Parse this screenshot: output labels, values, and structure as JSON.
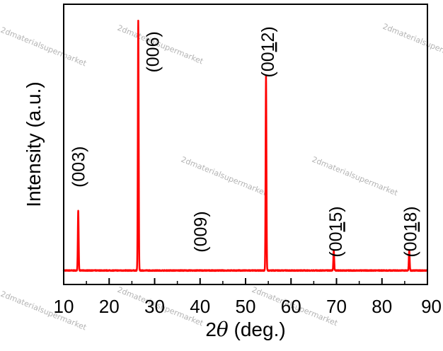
{
  "chart_data": {
    "type": "line",
    "xlabel_prefix": "2",
    "xlabel_symbol": "θ",
    "xlabel_suffix": " (deg.)",
    "ylabel": "Intensity (a.u.)",
    "xlim": [
      10,
      90
    ],
    "ylim": [
      0,
      100
    ],
    "xticks": [
      10,
      20,
      30,
      40,
      50,
      60,
      70,
      80,
      90
    ],
    "grid": false,
    "legend": "none",
    "series": [
      {
        "color": "#ff0000",
        "peaks": [
          {
            "x": 13.2,
            "y": 24
          },
          {
            "x": 26.4,
            "y": 100
          },
          {
            "x": 54.5,
            "y": 78
          },
          {
            "x": 69.4,
            "y": 8
          },
          {
            "x": 86.0,
            "y": 8
          }
        ],
        "baseline": 0.5
      }
    ],
    "annotations": [
      {
        "pre": "(00",
        "under": "",
        "post": "3)",
        "x": 13.2,
        "y": 42
      },
      {
        "pre": "(00",
        "under": "",
        "post": "6)",
        "x": 29.5,
        "y": 88
      },
      {
        "pre": "(00",
        "under": "",
        "post": "9)",
        "x": 40.0,
        "y": 16
      },
      {
        "pre": "(00",
        "under": "1",
        "post": "2)",
        "x": 54.8,
        "y": 88
      },
      {
        "pre": "(00",
        "under": "1",
        "post": "5)",
        "x": 69.8,
        "y": 16
      },
      {
        "pre": "(00",
        "under": "1",
        "post": "8)",
        "x": 86.2,
        "y": 16
      }
    ],
    "watermark": "2dmaterialsupermarket"
  }
}
